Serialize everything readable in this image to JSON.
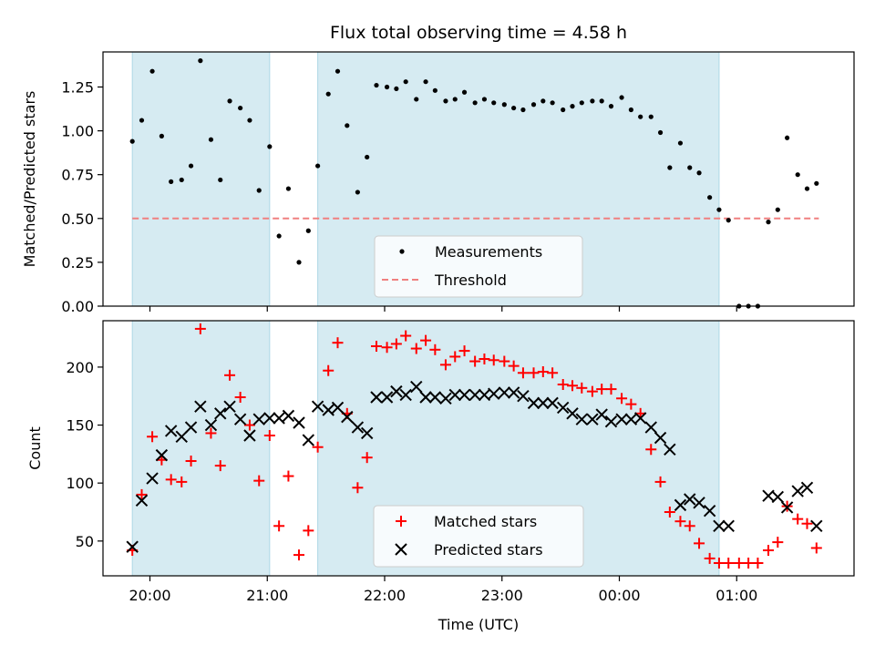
{
  "chart_data": [
    {
      "type": "scatter",
      "title": "Flux total observing time = 4.58 h",
      "ylabel": "Matched/Predicted stars",
      "xlabel": "",
      "xlim_hours": [
        19.6,
        26.0
      ],
      "ylim": [
        0,
        1.45
      ],
      "yticks": [
        0.0,
        0.25,
        0.5,
        0.75,
        1.0,
        1.25
      ],
      "ytick_labels": [
        "0.00",
        "0.25",
        "0.50",
        "0.75",
        "1.00",
        "1.25"
      ],
      "observing_windows": [
        [
          19.85,
          21.02
        ],
        [
          21.43,
          24.85
        ]
      ],
      "threshold": 0.5,
      "threshold_range": [
        19.85,
        25.7
      ],
      "legend": {
        "location": "bottom-center",
        "entries": [
          "Measurements",
          "Threshold"
        ]
      },
      "series": [
        {
          "name": "Measurements",
          "marker": "dot",
          "color": "#000000",
          "x": [
            19.85,
            19.93,
            20.02,
            20.1,
            20.18,
            20.27,
            20.35,
            20.43,
            20.52,
            20.6,
            20.68,
            20.77,
            20.85,
            20.93,
            21.02,
            21.1,
            21.18,
            21.27,
            21.35,
            21.43,
            21.52,
            21.6,
            21.68,
            21.77,
            21.85,
            21.93,
            22.02,
            22.1,
            22.18,
            22.27,
            22.35,
            22.43,
            22.52,
            22.6,
            22.68,
            22.77,
            22.85,
            22.93,
            23.02,
            23.1,
            23.18,
            23.27,
            23.35,
            23.43,
            23.52,
            23.6,
            23.68,
            23.77,
            23.85,
            23.93,
            24.02,
            24.1,
            24.18,
            24.27,
            24.35,
            24.43,
            24.52,
            24.6,
            24.68,
            24.77,
            24.85,
            24.93,
            25.02,
            25.1,
            25.18,
            25.27,
            25.35,
            25.43,
            25.52,
            25.6,
            25.68
          ],
          "y": [
            0.94,
            1.06,
            1.34,
            0.97,
            0.71,
            0.72,
            0.8,
            1.4,
            0.95,
            0.72,
            1.17,
            1.13,
            1.06,
            0.66,
            0.91,
            0.4,
            0.67,
            0.25,
            0.43,
            0.8,
            1.21,
            1.34,
            1.03,
            0.65,
            0.85,
            1.26,
            1.25,
            1.24,
            1.28,
            1.18,
            1.28,
            1.23,
            1.17,
            1.18,
            1.22,
            1.16,
            1.18,
            1.16,
            1.15,
            1.13,
            1.12,
            1.15,
            1.17,
            1.16,
            1.12,
            1.14,
            1.16,
            1.17,
            1.17,
            1.14,
            1.19,
            1.12,
            1.08,
            1.08,
            0.99,
            0.79,
            0.93,
            0.79,
            0.76,
            0.62,
            0.55,
            0.49,
            0.0,
            0.0,
            0.0,
            0.48,
            0.55,
            0.96,
            0.75,
            0.67,
            0.7
          ]
        }
      ]
    },
    {
      "type": "scatter",
      "title": "",
      "ylabel": "Count",
      "xlabel": "Time (UTC)",
      "xlim_hours": [
        19.6,
        26.0
      ],
      "ylim": [
        20,
        240
      ],
      "yticks": [
        50,
        100,
        150,
        200
      ],
      "ytick_labels": [
        "50",
        "100",
        "150",
        "200"
      ],
      "xticks_hours": [
        20,
        21,
        22,
        23,
        24,
        25
      ],
      "xtick_labels": [
        "20:00",
        "21:00",
        "22:00",
        "23:00",
        "00:00",
        "01:00"
      ],
      "observing_windows": [
        [
          19.85,
          21.02
        ],
        [
          21.43,
          24.85
        ]
      ],
      "legend": {
        "location": "bottom-center",
        "entries": [
          "Matched stars",
          "Predicted stars"
        ]
      },
      "series": [
        {
          "name": "Matched stars",
          "marker": "plus",
          "color": "#ff0000",
          "x": [
            19.85,
            19.93,
            20.02,
            20.1,
            20.18,
            20.27,
            20.35,
            20.43,
            20.52,
            20.6,
            20.68,
            20.77,
            20.85,
            20.93,
            21.02,
            21.1,
            21.18,
            21.27,
            21.35,
            21.43,
            21.52,
            21.6,
            21.68,
            21.77,
            21.85,
            21.93,
            22.02,
            22.1,
            22.18,
            22.27,
            22.35,
            22.43,
            22.52,
            22.6,
            22.68,
            22.77,
            22.85,
            22.93,
            23.02,
            23.1,
            23.18,
            23.27,
            23.35,
            23.43,
            23.52,
            23.6,
            23.68,
            23.77,
            23.85,
            23.93,
            24.02,
            24.1,
            24.18,
            24.27,
            24.35,
            24.43,
            24.52,
            24.6,
            24.68,
            24.77,
            24.85,
            24.93,
            25.02,
            25.1,
            25.18,
            25.27,
            25.35,
            25.43,
            25.52,
            25.6,
            25.68
          ],
          "y": [
            42,
            90,
            140,
            120,
            103,
            101,
            119,
            233,
            143,
            115,
            193,
            174,
            150,
            102,
            141,
            63,
            106,
            38,
            59,
            131,
            197,
            221,
            160,
            96,
            122,
            218,
            217,
            220,
            227,
            216,
            223,
            215,
            202,
            209,
            214,
            205,
            207,
            206,
            205,
            201,
            195,
            195,
            196,
            195,
            185,
            184,
            182,
            179,
            181,
            181,
            173,
            168,
            160,
            129,
            101,
            75,
            67,
            63,
            48,
            35,
            31,
            31,
            31,
            31,
            31,
            42,
            49,
            80,
            69,
            65,
            44
          ]
        },
        {
          "name": "Predicted stars",
          "marker": "x",
          "color": "#000000",
          "x": [
            19.85,
            19.93,
            20.02,
            20.1,
            20.18,
            20.27,
            20.35,
            20.43,
            20.52,
            20.6,
            20.68,
            20.77,
            20.85,
            20.93,
            21.02,
            21.1,
            21.18,
            21.27,
            21.35,
            21.43,
            21.52,
            21.6,
            21.68,
            21.77,
            21.85,
            21.93,
            22.02,
            22.1,
            22.18,
            22.27,
            22.35,
            22.43,
            22.52,
            22.6,
            22.68,
            22.77,
            22.85,
            22.93,
            23.02,
            23.1,
            23.18,
            23.27,
            23.35,
            23.43,
            23.52,
            23.6,
            23.68,
            23.77,
            23.85,
            23.93,
            24.02,
            24.1,
            24.18,
            24.27,
            24.35,
            24.43,
            24.52,
            24.6,
            24.68,
            24.77,
            24.85,
            24.93,
            25.27,
            25.35,
            25.43,
            25.52,
            25.6,
            25.68
          ],
          "y": [
            45,
            85,
            104,
            124,
            145,
            140,
            148,
            166,
            150,
            160,
            166,
            155,
            141,
            155,
            156,
            156,
            158,
            152,
            137,
            166,
            163,
            165,
            157,
            148,
            143,
            174,
            174,
            179,
            176,
            183,
            174,
            174,
            173,
            176,
            176,
            176,
            176,
            177,
            178,
            178,
            175,
            169,
            169,
            169,
            165,
            160,
            155,
            155,
            159,
            153,
            155,
            155,
            156,
            148,
            139,
            129,
            81,
            86,
            83,
            76,
            63,
            63,
            89,
            88,
            79,
            93,
            96,
            63
          ]
        }
      ]
    }
  ]
}
